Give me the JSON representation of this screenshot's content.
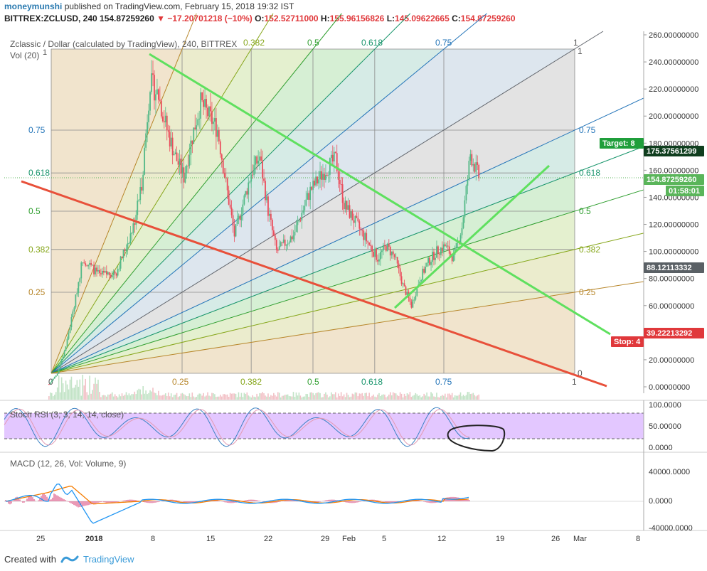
{
  "header": {
    "user": "moneymunshi",
    "published_text": "published on TradingView.com, February 15, 2018 19:32 IST",
    "symbol_line": "BITTREX:ZCLUSD, 240",
    "last": "154.87259260",
    "change": "−17.20701218 (−10%)",
    "o_label": "O:",
    "o": "152.52711000",
    "h_label": "H:",
    "h": "155.96156826",
    "l_label": "L:",
    "l": "145.09622665",
    "c_label": "C:",
    "c": "154.87259260"
  },
  "legend": {
    "title": "Zclassic / Dollar (calculated by TradingView), 240, BITTREX",
    "volume": "Vol (20)"
  },
  "chart_data": {
    "type": "candlestick",
    "symbol": "BITTREX:ZCLUSD",
    "timeframe": "240",
    "price_axis": {
      "ylim": [
        0,
        260
      ],
      "ticks": [
        "260.00000000",
        "240.00000000",
        "220.00000000",
        "200.00000000",
        "180.00000000",
        "160.00000000",
        "140.00000000",
        "120.00000000",
        "100.00000000",
        "80.00000000",
        "60.00000000",
        "40.00000000",
        "20.00000000",
        "0.00000000"
      ]
    },
    "x_axis": {
      "ticks": [
        "25",
        "2018",
        "8",
        "15",
        "22",
        "29",
        "Feb",
        "5",
        "12",
        "19",
        "26",
        "Mar",
        "8"
      ]
    },
    "approx_price_path": [
      [
        "Dec 26",
        2
      ],
      [
        "Dec 27",
        10
      ],
      [
        "Dec 28",
        30
      ],
      [
        "Dec 29",
        60
      ],
      [
        "Dec 30",
        95
      ],
      [
        "Jan 1",
        82
      ],
      [
        "Jan 3",
        85
      ],
      [
        "Jan 5",
        118
      ],
      [
        "Jan 6",
        150
      ],
      [
        "Jan 7",
        225
      ],
      [
        "Jan 8",
        215
      ],
      [
        "Jan 9",
        190
      ],
      [
        "Jan 10",
        170
      ],
      [
        "Jan 11",
        155
      ],
      [
        "Jan 12",
        185
      ],
      [
        "Jan 13",
        210
      ],
      [
        "Jan 14",
        200
      ],
      [
        "Jan 15",
        190
      ],
      [
        "Jan 16",
        150
      ],
      [
        "Jan 17",
        112
      ],
      [
        "Jan 18",
        135
      ],
      [
        "Jan 19",
        158
      ],
      [
        "Jan 20",
        170
      ],
      [
        "Jan 21",
        130
      ],
      [
        "Jan 22",
        100
      ],
      [
        "Jan 24",
        112
      ],
      [
        "Jan 26",
        145
      ],
      [
        "Jan 28",
        162
      ],
      [
        "Jan 29",
        168
      ],
      [
        "Jan 30",
        135
      ],
      [
        "Feb 1",
        115
      ],
      [
        "Feb 3",
        95
      ],
      [
        "Feb 4",
        104
      ],
      [
        "Feb 5",
        96
      ],
      [
        "Feb 6",
        75
      ],
      [
        "Feb 7",
        60
      ],
      [
        "Feb 8",
        80
      ],
      [
        "Feb 9",
        92
      ],
      [
        "Feb 10",
        100
      ],
      [
        "Feb 11",
        104
      ],
      [
        "Feb 12",
        95
      ],
      [
        "Feb 13",
        118
      ],
      [
        "Feb 14",
        172
      ],
      [
        "Feb 15",
        155
      ]
    ],
    "volume_label": "Vol (20)",
    "gann_fan_levels_left": [
      "0.75",
      "0.618",
      "0.5",
      "0.382",
      "0.25"
    ],
    "gann_fan_levels_right": [
      "0.75",
      "0.618",
      "0.5",
      "0.382",
      "0.25"
    ],
    "gann_fan_levels_top": [
      "0.382",
      "0.5",
      "0.618",
      "0.75",
      "1",
      "1"
    ],
    "gann_fan_levels_bottom": [
      "0",
      "0.25",
      "0.382",
      "0.5",
      "0.618",
      "0.75",
      "1",
      "0"
    ],
    "gann_top_left_label": "1",
    "price_labels": [
      {
        "text": "Target: 8",
        "color": "#1f9e3b"
      },
      {
        "text": "175.37561299",
        "color": "#0f3e1e"
      },
      {
        "text": "154.87259260",
        "color": "#5ab55a"
      },
      {
        "text": "01:58:01",
        "color": "#5ab55a"
      },
      {
        "text": "88.12113332",
        "color": "#5a6065"
      },
      {
        "text": "Stop: 4",
        "color": "#e0383b"
      },
      {
        "text": "39.22213292",
        "color": "#e0383b"
      }
    ],
    "indicators": {
      "stoch_rsi": {
        "label": "Stoch RSI (3, 3, 14, 14, close)",
        "ticks": [
          "100.0000",
          "50.00000",
          "0.0000"
        ],
        "bands": [
          80,
          20
        ],
        "colors": {
          "k": "#3a82c4",
          "d": "#e39ab3",
          "band_fill": "#e3c7ff"
        }
      },
      "macd": {
        "label": "MACD (12, 26, Vol: Volume, 9)",
        "ticks": [
          "40000.0000",
          "0.0000",
          "-40000.0000"
        ],
        "colors": {
          "macd": "#2196f3",
          "signal": "#f57c00",
          "hist": "#d6336c"
        }
      }
    },
    "colors": {
      "up": "#53b987",
      "down": "#eb4d5c",
      "red_trendline": "#e8503a",
      "green_lines": "#5fe05f"
    }
  },
  "footer": {
    "created_with": "Created with",
    "brand": "TradingView"
  }
}
